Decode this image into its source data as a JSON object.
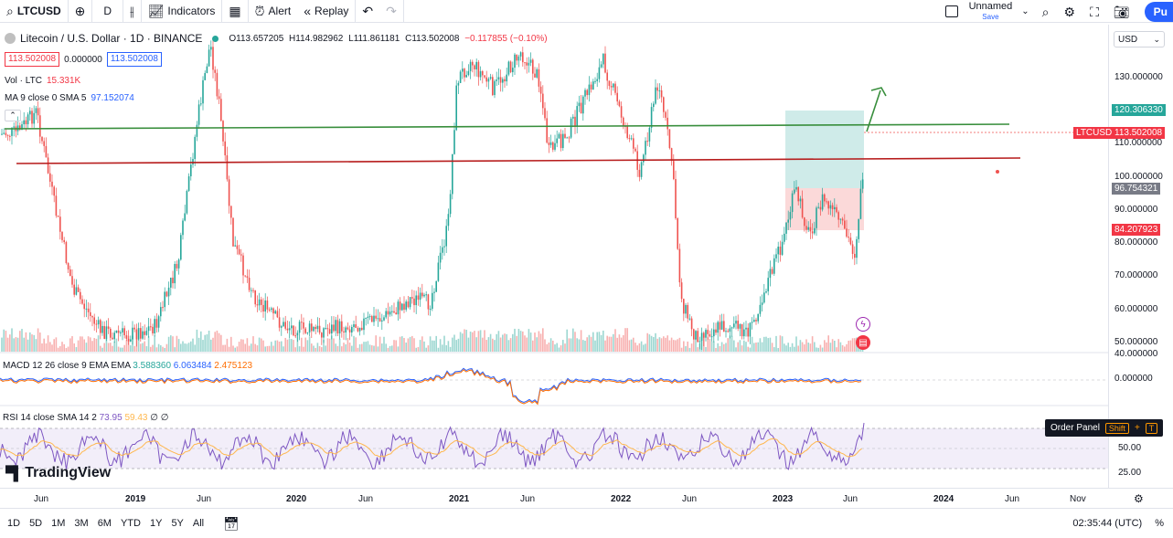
{
  "toolbar": {
    "symbol": "LTCUSD",
    "interval": "D",
    "indicators_label": "Indicators",
    "alert_label": "Alert",
    "replay_label": "Replay",
    "layout_name": "Unnamed",
    "layout_save": "Save",
    "publish_label": "Pu"
  },
  "legend": {
    "title": "Litecoin / U.S. Dollar · 1D · BINANCE",
    "open": "O113.657205",
    "high": "H114.982962",
    "low": "L111.861181",
    "close": "C113.502008",
    "change": "−0.117855 (−0.10%)",
    "bid": "113.502008",
    "spread": "0.000000",
    "ask": "113.502008",
    "vol_label": "Vol · LTC",
    "vol_value": "15.331K",
    "ma_label": "MA 9 close 0 SMA 5",
    "ma_value": "97.152074"
  },
  "price_axis": {
    "currency": "USD",
    "ticks": [
      "130.000000",
      "110.000000",
      "100.000000",
      "90.000000",
      "80.000000",
      "70.000000",
      "60.000000",
      "50.000000",
      "40.000000"
    ],
    "labels": {
      "target": "120.306330",
      "symbol": "LTCUSD",
      "current": "113.502008",
      "entry": "96.754321",
      "stop": "84.207923"
    }
  },
  "macd": {
    "label": "MACD 12 26 close 9 EMA EMA",
    "v1": "3.588360",
    "v2": "6.063484",
    "v3": "2.475123",
    "zero_tick": "0.000000"
  },
  "rsi": {
    "label": "RSI 14 close SMA 14 2",
    "v1": "73.95",
    "v2": "59.43",
    "v3": "∅",
    "v4": "∅",
    "ticks": [
      "50.00",
      "25.00"
    ]
  },
  "watermark": "TradingView",
  "order_panel": {
    "label": "Order Panel",
    "key1": "Shift",
    "key2": "T"
  },
  "time_axis": [
    "Jun",
    "2019",
    "Jun",
    "2020",
    "Jun",
    "2021",
    "Jun",
    "2022",
    "Jun",
    "2023",
    "Jun",
    "2024",
    "Jun",
    "Nov"
  ],
  "bottom": {
    "ranges": [
      "1D",
      "5D",
      "1M",
      "3M",
      "6M",
      "YTD",
      "1Y",
      "5Y",
      "All"
    ],
    "clock": "02:35:44 (UTC)",
    "percent": "%"
  },
  "colors": {
    "up": "#26a69a",
    "down": "#ef5350",
    "green_line": "#388e3c",
    "red_line": "#b71c1c",
    "accent": "#2962ff",
    "rsi": "#7e57c2",
    "signal": "#ffb74d"
  }
}
